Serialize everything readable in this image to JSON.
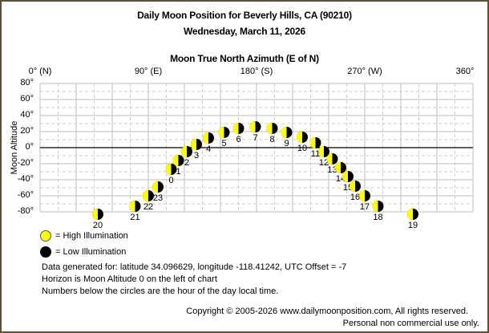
{
  "header": {
    "title": "Daily Moon Position for Beverly Hills, CA (90210)",
    "date": "Wednesday, March 11, 2026",
    "x_axis_title": "Moon True North Azimuth (E of N)",
    "y_axis_title": "Moon Altitude"
  },
  "x_ticks": [
    "0° (N)",
    "90° (E)",
    "180° (S)",
    "270° (W)",
    "360°"
  ],
  "y_ticks": [
    "80°",
    "60°",
    "40°",
    "20°",
    "0°",
    "-20°",
    "-40°",
    "-60°",
    "-80°"
  ],
  "legend": {
    "high": "= High Illumination",
    "low": "= Low Illumination"
  },
  "info": {
    "line1": "Data generated for: latitude 34.096629, longitude -118.41242, UTC Offset = -7",
    "line2": "Horizon is Moon Altitude 0 on the left of chart",
    "line3": "Numbers below the circles are the hour of the day local time."
  },
  "footer": {
    "copyright": "Copyright © 2005-2026 www.dailymoonposition.com, All rights reserved.",
    "usage": "Personal non commercial use only."
  },
  "colors": {
    "high_illumination": "#ffff00",
    "low_illumination": "#000000",
    "grid": "#c0c0c0",
    "horizon": "#000000",
    "frame": "#5e5030"
  },
  "chart_data": {
    "type": "scatter",
    "title": "Daily Moon Position for Beverly Hills, CA (90210)",
    "subtitle": "Wednesday, March 11, 2026",
    "xlabel": "Moon True North Azimuth (E of N)",
    "ylabel": "Moon Altitude",
    "xlim": [
      0,
      360
    ],
    "ylim": [
      -80,
      80
    ],
    "x_tick_values": [
      0,
      90,
      180,
      270,
      360
    ],
    "x_tick_labels": [
      "0° (N)",
      "90° (E)",
      "180° (S)",
      "270° (W)",
      "360°"
    ],
    "y_tick_values": [
      80,
      60,
      40,
      20,
      0,
      -20,
      -40,
      -60,
      -80
    ],
    "grid": true,
    "legend": [
      "High Illumination",
      "Low Illumination"
    ],
    "legend_position": "bottom-left",
    "marker": "half-lit moon (left yellow, right black)",
    "points": [
      {
        "hour": 20,
        "azimuth": 48,
        "altitude": -83
      },
      {
        "hour": 21,
        "azimuth": 79,
        "altitude": -73
      },
      {
        "hour": 22,
        "azimuth": 90,
        "altitude": -60
      },
      {
        "hour": 23,
        "azimuth": 98,
        "altitude": -49
      },
      {
        "hour": 0,
        "azimuth": 109,
        "altitude": -27
      },
      {
        "hour": 1,
        "azimuth": 115,
        "altitude": -16
      },
      {
        "hour": 2,
        "azimuth": 122,
        "altitude": -5
      },
      {
        "hour": 3,
        "azimuth": 130,
        "altitude": 4
      },
      {
        "hour": 4,
        "azimuth": 140,
        "altitude": 12
      },
      {
        "hour": 5,
        "azimuth": 153,
        "altitude": 19
      },
      {
        "hour": 6,
        "azimuth": 165,
        "altitude": 24
      },
      {
        "hour": 7,
        "azimuth": 179,
        "altitude": 26
      },
      {
        "hour": 8,
        "azimuth": 193,
        "altitude": 24
      },
      {
        "hour": 9,
        "azimuth": 205,
        "altitude": 19
      },
      {
        "hour": 10,
        "azimuth": 218,
        "altitude": 13
      },
      {
        "hour": 11,
        "azimuth": 229,
        "altitude": 6
      },
      {
        "hour": 12,
        "azimuth": 236,
        "altitude": -5
      },
      {
        "hour": 13,
        "azimuth": 243,
        "altitude": -14
      },
      {
        "hour": 14,
        "azimuth": 250,
        "altitude": -25
      },
      {
        "hour": 15,
        "azimuth": 256,
        "altitude": -36
      },
      {
        "hour": 16,
        "azimuth": 262,
        "altitude": -48
      },
      {
        "hour": 17,
        "azimuth": 270,
        "altitude": -60
      },
      {
        "hour": 18,
        "azimuth": 281,
        "altitude": -73
      },
      {
        "hour": 19,
        "azimuth": 310,
        "altitude": -83
      }
    ]
  }
}
